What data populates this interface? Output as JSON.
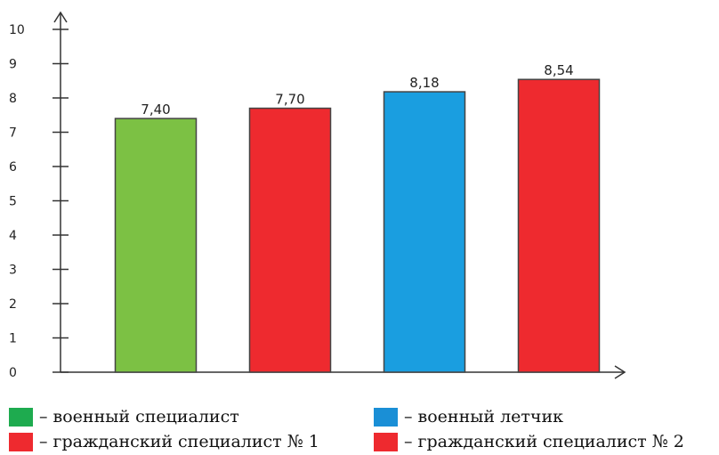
{
  "chart_data": {
    "type": "bar",
    "categories": [
      "военный специалист",
      "гражданский специалист № 1",
      "военный летчик",
      "гражданский специалист № 2"
    ],
    "values": [
      7.4,
      7.7,
      8.18,
      8.54
    ],
    "value_labels": [
      "7,40",
      "7,70",
      "8,18",
      "8,54"
    ],
    "bar_colors": [
      "#7cc144",
      "#ee2a2f",
      "#1a9ee0",
      "#ee2a2f"
    ],
    "ylim": [
      0,
      10
    ],
    "yticks": [
      0,
      1,
      2,
      3,
      4,
      5,
      6,
      7,
      8,
      9,
      10
    ],
    "title": "",
    "xlabel": "",
    "ylabel": "",
    "grid": false,
    "legend_position": "bottom"
  },
  "legend": [
    {
      "text": "– военный специалист",
      "color": "#1eab4f"
    },
    {
      "text": "– военный летчик",
      "color": "#1a8fd6"
    },
    {
      "text": "– гражданский специалист № 1",
      "color": "#ee2a2f"
    },
    {
      "text": "– гражданский специалист № 2",
      "color": "#ee2a2f"
    }
  ]
}
